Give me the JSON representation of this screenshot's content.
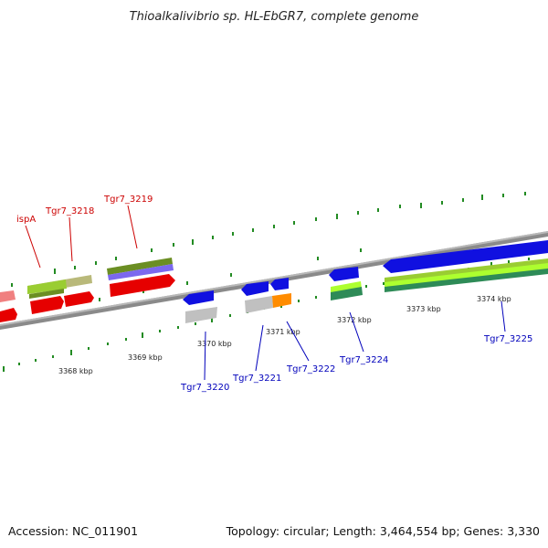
{
  "title": "Thioalkalivibrio sp. HL-EbGR7, complete genome",
  "footer": {
    "accession": "Accession: NC_011901",
    "stats": "Topology: circular; Length: 3,464,554 bp; Genes: 3,330"
  },
  "colors": {
    "backbone": "#8a8a8a",
    "label_forward": "#cc0000",
    "label_reverse": "#0000bb",
    "tick": "#228b22"
  },
  "scale_labels": [
    "3368 kbp",
    "3369 kbp",
    "3370 kbp",
    "3371 kbp",
    "3372 kbp",
    "3373 kbp",
    "3374 kbp"
  ],
  "gene_labels": {
    "ispA": "ispA",
    "tgr7_3218": "Tgr7_3218",
    "tgr7_3219": "Tgr7_3219",
    "tgr7_3220": "Tgr7_3220",
    "tgr7_3221": "Tgr7_3221",
    "tgr7_3222": "Tgr7_3222",
    "tgr7_3224": "Tgr7_3224",
    "tgr7_3225": "Tgr7_3225"
  }
}
